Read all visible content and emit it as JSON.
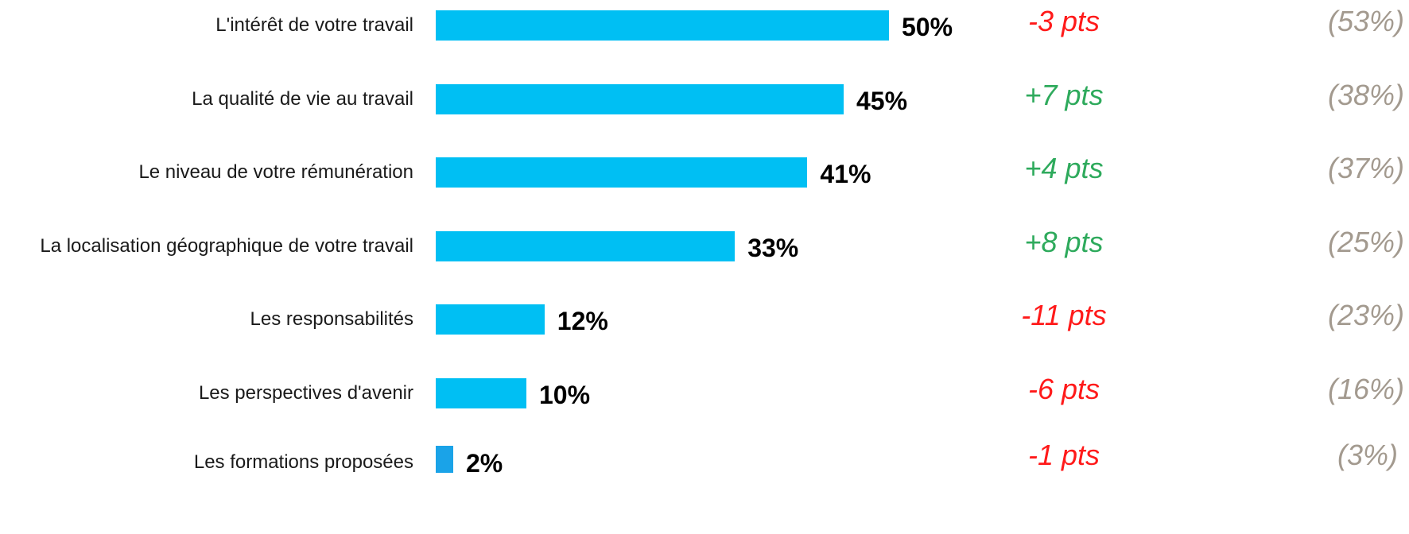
{
  "chart_data": {
    "type": "bar",
    "orientation": "horizontal",
    "categories": [
      "L'intérêt de votre travail",
      "La qualité de vie au travail",
      "Le niveau de votre rémunération",
      "La localisation géographique de votre travail",
      "Les responsabilités",
      "Les perspectives d'avenir",
      "Les formations proposées"
    ],
    "values": [
      50,
      45,
      41,
      33,
      12,
      10,
      2
    ],
    "value_labels": [
      "50%",
      "45%",
      "41%",
      "33%",
      "12%",
      "10%",
      "2%"
    ],
    "changes": [
      "-3 pts",
      "+7 pts",
      "+4 pts",
      "+8 pts",
      "-11 pts",
      "-6 pts",
      "-1 pts"
    ],
    "change_signs": [
      "negative",
      "positive",
      "positive",
      "positive",
      "negative",
      "negative",
      "negative"
    ],
    "previous_values": [
      53,
      38,
      37,
      25,
      23,
      16,
      3
    ],
    "previous_labels": [
      "(53%)",
      "(38%)",
      "(37%)",
      "(25%)",
      "(23%)",
      "(16%)",
      "(3%)"
    ],
    "xlim": [
      0,
      50
    ],
    "grid": false,
    "title": "",
    "xlabel": "",
    "ylabel": ""
  },
  "colors": {
    "bar": "#00bff3",
    "bar_last": "#1aa3e8",
    "positive": "#2eaa5c",
    "negative": "#ff1a1a",
    "previous": "#a39a8f",
    "value": "#000000",
    "label": "#1a1a1a"
  }
}
